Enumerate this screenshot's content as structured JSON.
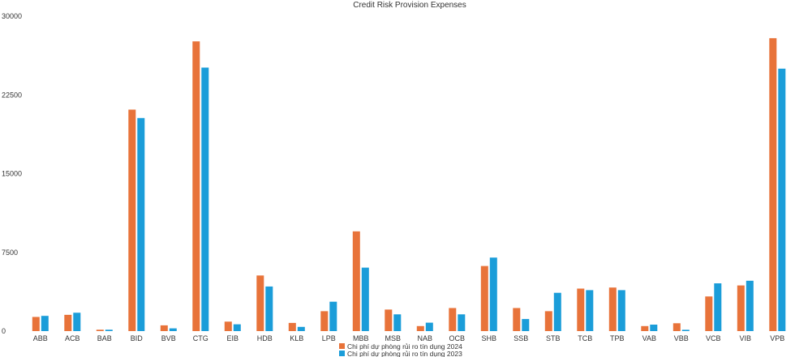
{
  "chart_data": {
    "type": "bar",
    "title": "Credit Risk Provision Expenses",
    "xlabel": "",
    "ylabel": "",
    "ylim": [
      0,
      30000
    ],
    "yticks": [
      0,
      7500,
      15000,
      22500,
      30000
    ],
    "grid": false,
    "legend_position": "bottom",
    "categories": [
      "ABB",
      "ACB",
      "BAB",
      "BID",
      "BVB",
      "CTG",
      "EIB",
      "HDB",
      "KLB",
      "LPB",
      "MBB",
      "MSB",
      "NAB",
      "OCB",
      "SHB",
      "SSB",
      "STB",
      "TCB",
      "TPB",
      "VAB",
      "VBB",
      "VCB",
      "VIB",
      "VPB"
    ],
    "series": [
      {
        "name": "Chi phí dự phòng rủi ro tín dụng 2024",
        "color": "#E8733A",
        "values": [
          1350,
          1550,
          130,
          21100,
          550,
          27600,
          900,
          5300,
          780,
          1900,
          9500,
          2050,
          480,
          2200,
          6200,
          2200,
          1900,
          4050,
          4150,
          480,
          750,
          3300,
          4350,
          27900
        ]
      },
      {
        "name": "Chi phí dự phòng rủi ro tín dụng 2023",
        "color": "#1B9DD9",
        "values": [
          1450,
          1750,
          130,
          20300,
          260,
          25100,
          650,
          4250,
          400,
          2800,
          6050,
          1600,
          800,
          1600,
          7000,
          1150,
          3650,
          3900,
          3900,
          620,
          120,
          4550,
          4800,
          25000
        ]
      }
    ]
  }
}
